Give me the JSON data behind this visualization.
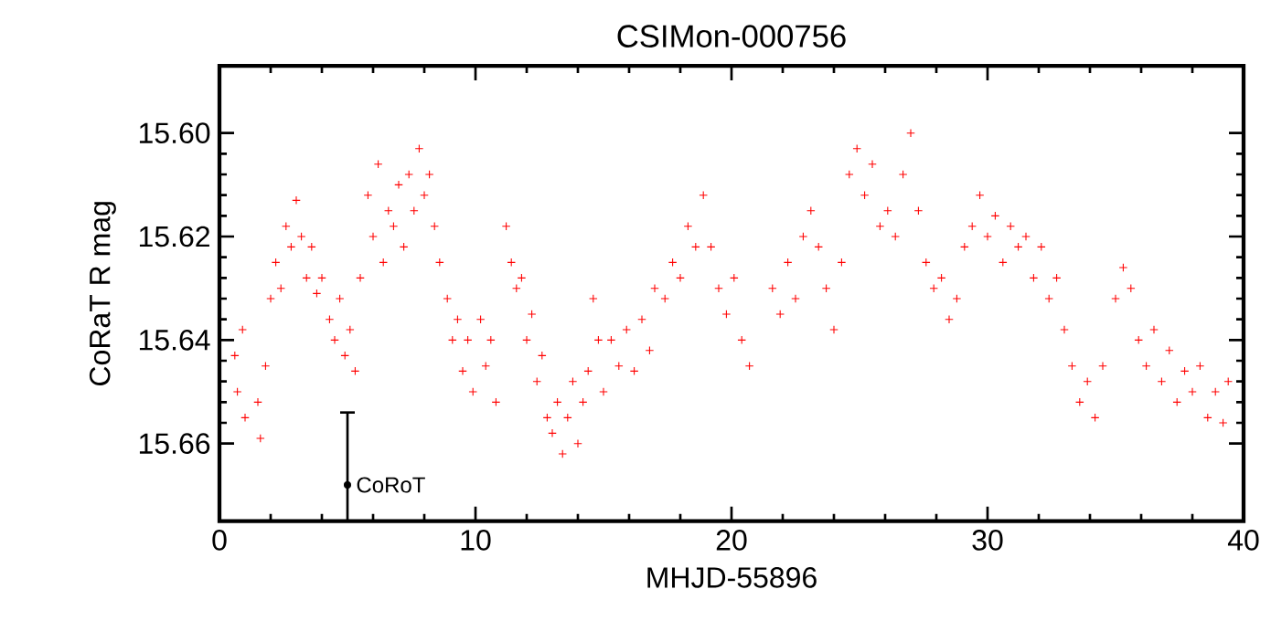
{
  "chart_data": {
    "type": "scatter",
    "title": "CSIMon-000756",
    "xlabel": "MHJD-55896",
    "ylabel": "CoRaT R mag",
    "xlim": [
      0,
      40
    ],
    "xticks": [
      0,
      10,
      20,
      30,
      40
    ],
    "ylim": [
      15.675,
      15.587
    ],
    "yticks": [
      {
        "value": 15.6,
        "label": "15.60"
      },
      {
        "value": 15.62,
        "label": "15.62"
      },
      {
        "value": 15.64,
        "label": "15.64"
      },
      {
        "value": 15.66,
        "label": "15.66"
      }
    ],
    "legend": false,
    "grid": false,
    "series": [
      {
        "color": "#ff0000",
        "marker": "cross",
        "x": [
          0.6,
          0.7,
          0.9,
          1.0,
          1.5,
          1.6,
          1.8,
          2.0,
          2.2,
          2.4,
          2.6,
          2.8,
          3.0,
          3.2,
          3.4,
          3.6,
          3.8,
          4.0,
          4.3,
          4.5,
          4.7,
          4.9,
          5.1,
          5.3,
          5.5,
          5.8,
          6.0,
          6.2,
          6.4,
          6.6,
          6.8,
          7.0,
          7.2,
          7.4,
          7.6,
          7.8,
          8.0,
          8.2,
          8.4,
          8.6,
          8.9,
          9.1,
          9.3,
          9.5,
          9.7,
          9.9,
          10.2,
          10.4,
          10.6,
          10.8,
          11.2,
          11.4,
          11.6,
          11.8,
          12.0,
          12.2,
          12.4,
          12.6,
          12.8,
          13.0,
          13.2,
          13.4,
          13.6,
          13.8,
          14.0,
          14.2,
          14.4,
          14.6,
          14.8,
          15.0,
          15.3,
          15.6,
          15.9,
          16.2,
          16.5,
          16.8,
          17.0,
          17.4,
          17.7,
          18.0,
          18.3,
          18.6,
          18.9,
          19.2,
          19.5,
          19.8,
          20.1,
          20.4,
          20.7,
          21.6,
          21.9,
          22.2,
          22.5,
          22.8,
          23.1,
          23.4,
          23.7,
          24.0,
          24.3,
          24.6,
          24.9,
          25.2,
          25.5,
          25.8,
          26.1,
          26.4,
          26.7,
          27.0,
          27.3,
          27.6,
          27.9,
          28.2,
          28.5,
          28.8,
          29.1,
          29.4,
          29.7,
          30.0,
          30.3,
          30.6,
          30.9,
          31.2,
          31.5,
          31.8,
          32.1,
          32.4,
          32.7,
          33.0,
          33.3,
          33.6,
          33.9,
          34.2,
          34.5,
          35.0,
          35.3,
          35.6,
          35.9,
          36.2,
          36.5,
          36.8,
          37.1,
          37.4,
          37.7,
          38.0,
          38.3,
          38.6,
          38.9,
          39.2,
          39.4
        ],
        "values": [
          15.643,
          15.65,
          15.638,
          15.655,
          15.652,
          15.659,
          15.645,
          15.632,
          15.625,
          15.63,
          15.618,
          15.622,
          15.613,
          15.62,
          15.628,
          15.622,
          15.631,
          15.628,
          15.636,
          15.64,
          15.632,
          15.643,
          15.638,
          15.646,
          15.628,
          15.612,
          15.62,
          15.606,
          15.625,
          15.615,
          15.618,
          15.61,
          15.622,
          15.608,
          15.615,
          15.603,
          15.612,
          15.608,
          15.618,
          15.625,
          15.632,
          15.64,
          15.636,
          15.646,
          15.64,
          15.65,
          15.636,
          15.645,
          15.64,
          15.652,
          15.618,
          15.625,
          15.63,
          15.628,
          15.64,
          15.635,
          15.648,
          15.643,
          15.655,
          15.658,
          15.652,
          15.662,
          15.655,
          15.648,
          15.66,
          15.652,
          15.646,
          15.632,
          15.64,
          15.65,
          15.64,
          15.645,
          15.638,
          15.646,
          15.636,
          15.642,
          15.63,
          15.632,
          15.625,
          15.628,
          15.618,
          15.622,
          15.612,
          15.622,
          15.63,
          15.635,
          15.628,
          15.64,
          15.645,
          15.63,
          15.635,
          15.625,
          15.632,
          15.62,
          15.615,
          15.622,
          15.63,
          15.638,
          15.625,
          15.608,
          15.603,
          15.612,
          15.606,
          15.618,
          15.615,
          15.62,
          15.608,
          15.6,
          15.615,
          15.625,
          15.63,
          15.628,
          15.636,
          15.632,
          15.622,
          15.618,
          15.612,
          15.62,
          15.616,
          15.625,
          15.618,
          15.622,
          15.62,
          15.628,
          15.622,
          15.632,
          15.628,
          15.638,
          15.645,
          15.652,
          15.648,
          15.655,
          15.645,
          15.632,
          15.626,
          15.63,
          15.64,
          15.645,
          15.638,
          15.648,
          15.642,
          15.652,
          15.646,
          15.65,
          15.645,
          15.655,
          15.65,
          15.656,
          15.648
        ]
      },
      {
        "name": "CoRoT",
        "color": "#000000",
        "marker": "circle",
        "x": [
          5
        ],
        "values": [
          15.668
        ],
        "errors": [
          [
            15.654,
            15.675
          ]
        ]
      }
    ]
  }
}
